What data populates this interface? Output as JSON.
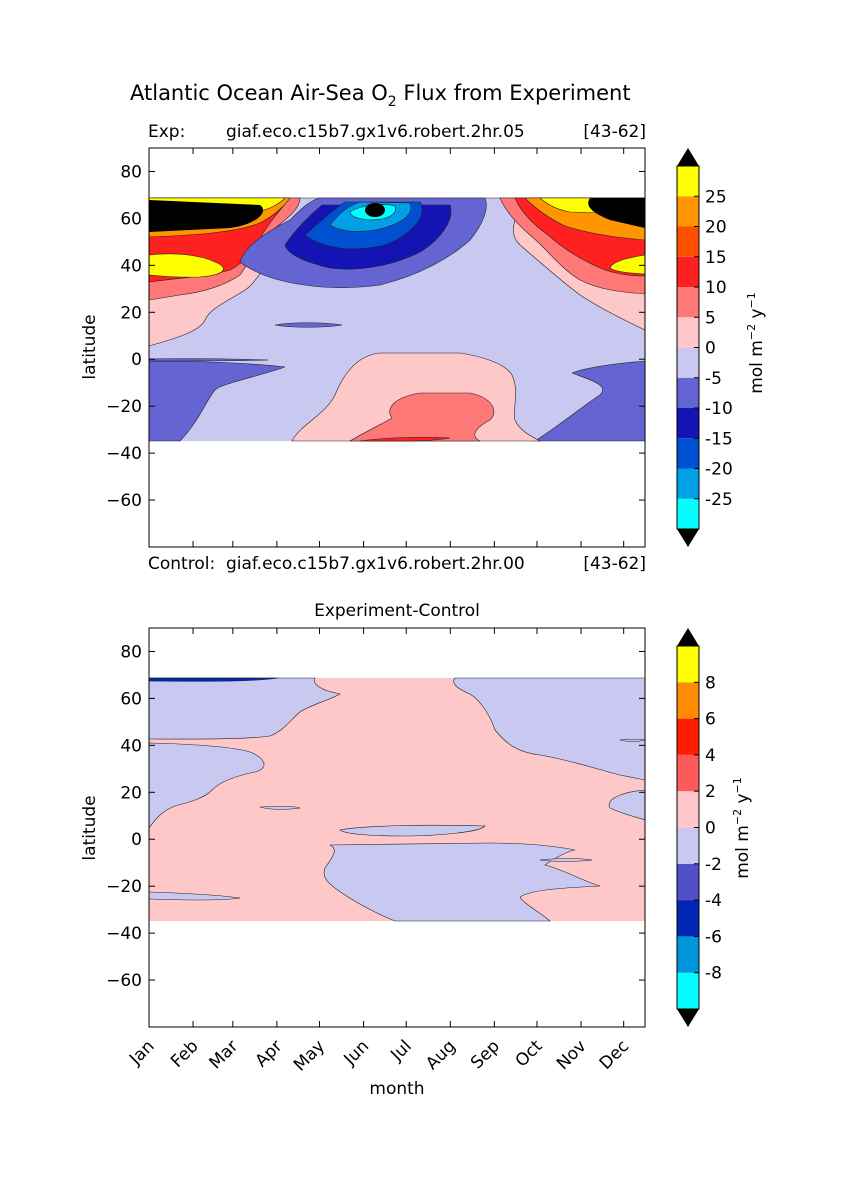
{
  "title": {
    "main_prefix": "Atlantic Ocean Air-Sea O",
    "subscript": "2",
    "main_suffix": " Flux from Experiment"
  },
  "chart_data": [
    {
      "type": "contourf",
      "name": "experiment",
      "exp_label": "Exp:",
      "case_name": "giaf.eco.c15b7.gx1v6.robert.2hr.05",
      "years": "[43-62]",
      "ylabel": "latitude",
      "ylim": [
        -80,
        90
      ],
      "yticks": [
        80,
        60,
        40,
        20,
        0,
        -20,
        -40,
        -60
      ],
      "ytick_labels": [
        "80",
        "60",
        "40",
        "20",
        "0",
        "−20",
        "−40",
        "−60"
      ],
      "data_lat_range": [
        -34,
        69
      ],
      "colorbar": {
        "label_base": "mol m",
        "label_exp1": "−2",
        "label_mid": " y",
        "label_exp2": "−1",
        "levels": [
          -30,
          -25,
          -20,
          -15,
          -10,
          -5,
          0,
          5,
          10,
          15,
          20,
          25,
          30
        ],
        "tick_labels": [
          "25",
          "20",
          "15",
          "10",
          "5",
          "0",
          "-5",
          "-10",
          "-15",
          "-20",
          "-25"
        ],
        "colors": [
          "#00ffff",
          "#00a0e6",
          "#0050d2",
          "#1414b4",
          "#6464d2",
          "#c8c8f0",
          "#ffc8c8",
          "#ff7878",
          "#ff2020",
          "#ff5000",
          "#ff9600",
          "#ffff00"
        ],
        "over_color": "#000000",
        "under_color": "#000000"
      },
      "regions": [
        {
          "range": "-5..0",
          "color": "#c8c8f0",
          "note": "background"
        },
        {
          "range": "-10..-5",
          "color": "#6464d2",
          "lat": [
            -34,
            0
          ],
          "months": "Jan-Mar, Oct-Dec"
        },
        {
          "range": "0..5",
          "color": "#ffc8c8",
          "lat": [
            -34,
            0
          ],
          "months": "Apr-Sep"
        },
        {
          "range": "0..5",
          "color": "#ffc8c8",
          "lat": [
            5,
            60
          ],
          "months": "Jan-Apr, Sep-Dec"
        },
        {
          "range": "5..30",
          "color": "#ff7878",
          "lat": [
            30,
            69
          ],
          "months": "Jan-Mar, Oct-Dec"
        },
        {
          "range": "-25..-10",
          "color": "#1414b4",
          "lat": [
            35,
            69
          ],
          "months": "Apr-Jul"
        },
        {
          "range": "<-30",
          "color": "#000000",
          "lat": [
            60,
            66
          ],
          "months": "Jun"
        }
      ]
    },
    {
      "type": "contourf",
      "name": "difference",
      "control_label": "Control:",
      "case_name": "giaf.eco.c15b7.gx1v6.robert.2hr.00",
      "years": "[43-62]",
      "title": "Experiment-Control",
      "xlabel": "month",
      "ylabel": "latitude",
      "categories": [
        "Jan",
        "Feb",
        "Mar",
        "Apr",
        "May",
        "Jun",
        "Jul",
        "Aug",
        "Sep",
        "Oct",
        "Nov",
        "Dec"
      ],
      "ylim": [
        -80,
        90
      ],
      "yticks": [
        80,
        60,
        40,
        20,
        0,
        -20,
        -40,
        -60
      ],
      "ytick_labels": [
        "80",
        "60",
        "40",
        "20",
        "0",
        "−20",
        "−40",
        "−60"
      ],
      "data_lat_range": [
        -34,
        69
      ],
      "colorbar": {
        "label_base": "mol m",
        "label_exp1": "−2",
        "label_mid": " y",
        "label_exp2": "−1",
        "levels": [
          -10,
          -8,
          -6,
          -4,
          -2,
          0,
          2,
          4,
          6,
          8,
          10
        ],
        "tick_labels": [
          "8",
          "6",
          "4",
          "2",
          "0",
          "-2",
          "-4",
          "-6",
          "-8"
        ],
        "colors": [
          "#00ffff",
          "#0096dc",
          "#0028b4",
          "#5050c8",
          "#c8c8f0",
          "#ffc8c8",
          "#ff5a5a",
          "#ff1e00",
          "#ff8c00",
          "#ffff00"
        ],
        "over_color": "#000000",
        "under_color": "#000000"
      },
      "regions": [
        {
          "range": "0..2",
          "color": "#ffc8c8",
          "note": "background"
        },
        {
          "range": "-2..0",
          "color": "#c8c8f0",
          "lat": [
            42,
            69
          ],
          "months": "Jan-May, Aug-Dec"
        },
        {
          "range": "-2..0",
          "color": "#c8c8f0",
          "lat": [
            5,
            40
          ],
          "months": "Jan-Mar"
        },
        {
          "range": "-2..0",
          "color": "#c8c8f0",
          "lat": [
            -34,
            -2
          ],
          "months": "Apr-Oct"
        },
        {
          "range": "-4..-2",
          "color": "#0028b4",
          "lat": [
            67,
            69
          ],
          "months": "Jan-Mar"
        }
      ]
    }
  ]
}
